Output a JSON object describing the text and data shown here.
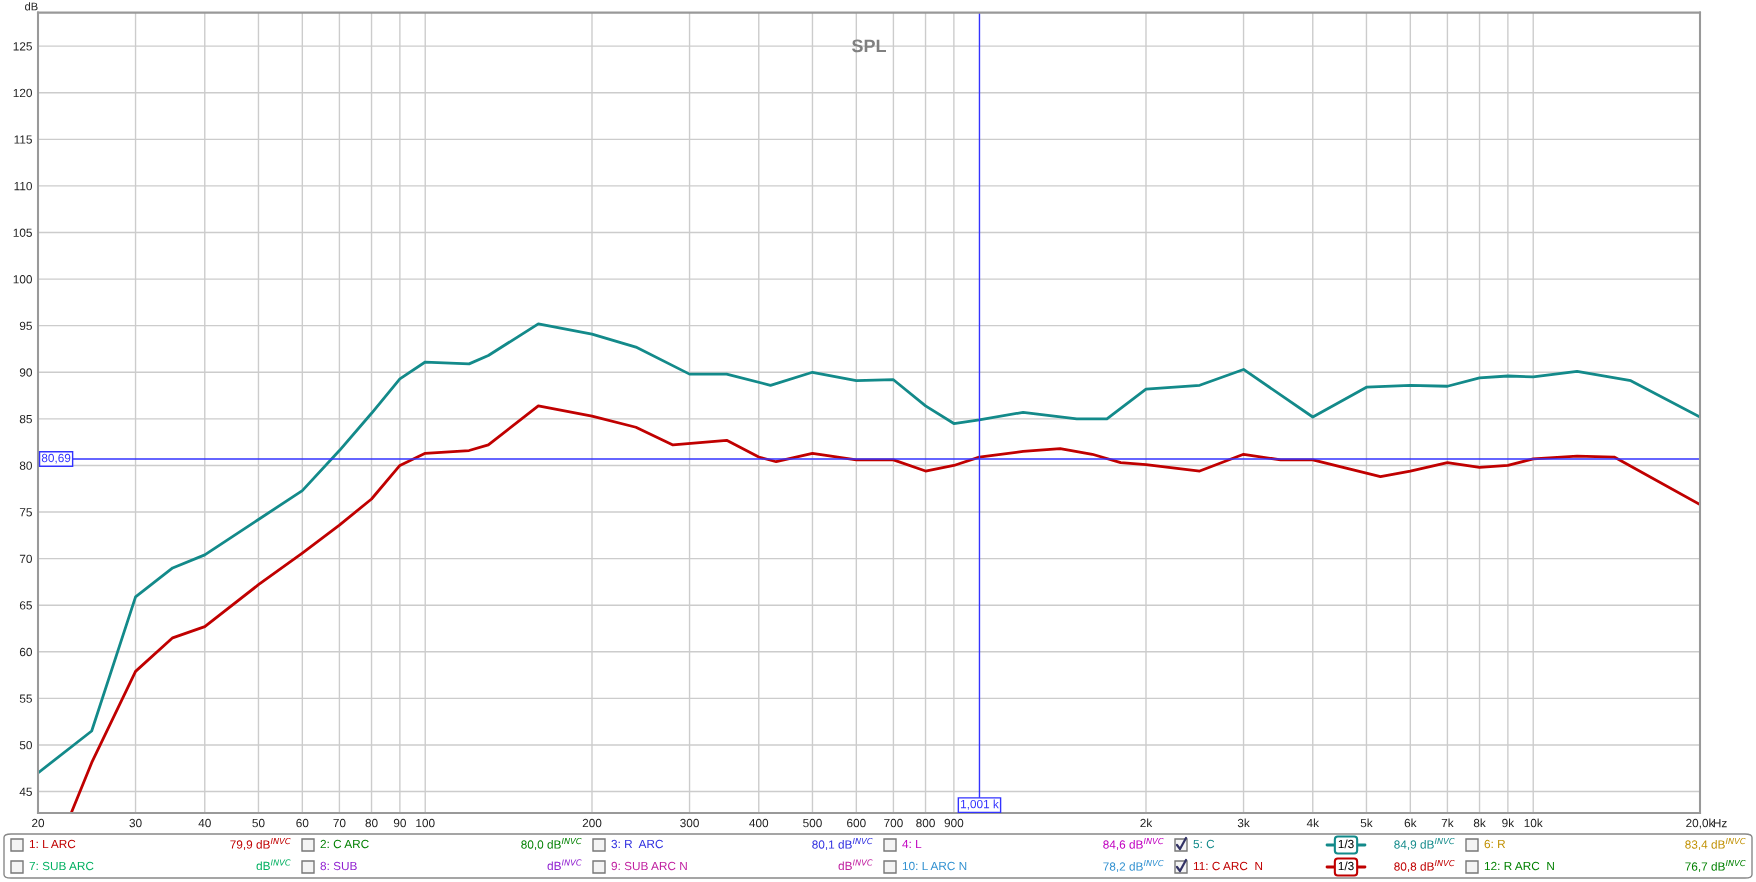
{
  "chart_data": {
    "type": "line",
    "title": "SPL",
    "xlabel": "Hz",
    "ylabel": "dB",
    "log": "x",
    "grid": true,
    "legend": "bottom",
    "xlim": [
      20,
      20000
    ],
    "ylim": [
      42.7,
      128.6
    ],
    "xticks": [
      20,
      30,
      40,
      50,
      60,
      70,
      80,
      90,
      100,
      200,
      300,
      400,
      500,
      600,
      700,
      800,
      900,
      {
        "value": 2000,
        "label": "2k"
      },
      {
        "value": 3000,
        "label": "3k"
      },
      {
        "value": 4000,
        "label": "4k"
      },
      {
        "value": 5000,
        "label": "5k"
      },
      {
        "value": 6000,
        "label": "6k"
      },
      {
        "value": 7000,
        "label": "7k"
      },
      {
        "value": 8000,
        "label": "8k"
      },
      {
        "value": 9000,
        "label": "9k"
      },
      {
        "value": 10000,
        "label": "10k"
      },
      {
        "value": 20000,
        "label": "20,0k"
      }
    ],
    "yticks": [
      45,
      50,
      55,
      60,
      65,
      70,
      75,
      80,
      85,
      90,
      95,
      100,
      105,
      110,
      115,
      120,
      125
    ],
    "series": [
      {
        "name": "5: C",
        "color": "#138a8a",
        "x": [
          20,
          25,
          30,
          35,
          40,
          50,
          60,
          70,
          80,
          90,
          100,
          120,
          130,
          160,
          200,
          240,
          300,
          350,
          420,
          500,
          600,
          700,
          800,
          900,
          1000,
          1200,
          1500,
          1700,
          2000,
          2500,
          3000,
          4000,
          5000,
          6000,
          7000,
          8000,
          9000,
          10000,
          12000,
          15000,
          20000
        ],
        "values": [
          47.0,
          51.5,
          65.9,
          69.0,
          70.4,
          74.2,
          77.3,
          81.6,
          85.6,
          89.3,
          91.1,
          90.9,
          91.8,
          95.2,
          94.1,
          92.7,
          89.8,
          89.8,
          88.6,
          90.0,
          89.1,
          89.2,
          86.4,
          84.5,
          84.9,
          85.7,
          85.0,
          85.0,
          88.2,
          88.6,
          90.3,
          85.2,
          88.4,
          88.6,
          88.5,
          89.4,
          89.6,
          89.5,
          90.1,
          89.1,
          85.2
        ]
      },
      {
        "name": "11: C ARC  N",
        "color": "#c00000",
        "x": [
          23,
          25,
          30,
          35,
          40,
          50,
          60,
          70,
          80,
          90,
          100,
          120,
          130,
          160,
          200,
          240,
          280,
          350,
          400,
          430,
          500,
          600,
          700,
          800,
          900,
          1000,
          1200,
          1400,
          1600,
          1800,
          2000,
          2500,
          3000,
          3500,
          4000,
          5300,
          6000,
          7000,
          8000,
          9000,
          10000,
          12000,
          14000,
          20000
        ],
        "values": [
          42.8,
          48.1,
          57.9,
          61.5,
          62.7,
          67.2,
          70.6,
          73.6,
          76.4,
          80.0,
          81.3,
          81.6,
          82.2,
          86.4,
          85.3,
          84.1,
          82.2,
          82.7,
          80.9,
          80.4,
          81.3,
          80.6,
          80.6,
          79.4,
          80.0,
          80.9,
          81.5,
          81.8,
          81.2,
          80.3,
          80.1,
          79.4,
          81.2,
          80.6,
          80.6,
          78.8,
          79.4,
          80.3,
          79.8,
          80.0,
          80.7,
          81.0,
          80.9,
          75.8
        ]
      }
    ],
    "ref_lines": [
      {
        "axis": "x",
        "value": 1001,
        "label": "1,001 k",
        "color": "#3333ff"
      },
      {
        "axis": "y",
        "value": 80.69,
        "label": "80,69",
        "color": "#3333ff"
      }
    ],
    "annotations": [
      "1: L ARC",
      "79,9 dB$^{INVC}$",
      "2: C ARC",
      "80,0 dB$^{INVC}$",
      "3: R  ARC",
      "80,1 dB$^{INVC}$",
      "4: L",
      "84,6 dB$^{INVC}$",
      "1/3",
      "84,9 dB$^{INVC}$",
      "6: R",
      "83,4 dB$^{INVC}$",
      "7: SUB ARC",
      "dB$^{INVC}$",
      "8: SUB",
      "dB$^{INVC}$",
      "9: SUB ARC N",
      "dB$^{INVC}$",
      "10: L ARC N",
      "78,2 dB$^{INVC}$",
      "1/3",
      "80,8 dB$^{INVC}$",
      "12: R ARC  N",
      "76,7 dB$^{INVC}$"
    ]
  }
}
